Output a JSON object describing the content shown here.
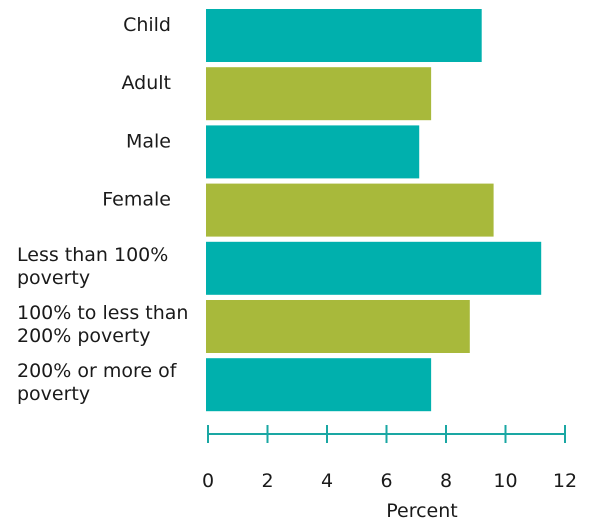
{
  "chart_data": {
    "type": "bar",
    "orientation": "horizontal",
    "categories": [
      "Child",
      "Adult",
      "Male",
      "Female",
      "Less than 100% poverty",
      "100% to less than 200% poverty",
      "200% or more of poverty"
    ],
    "category_lines": [
      [
        "Child"
      ],
      [
        "Adult"
      ],
      [
        "Male"
      ],
      [
        "Female"
      ],
      [
        "Less than 100%",
        "poverty"
      ],
      [
        "100% to less than",
        "200% poverty"
      ],
      [
        "200% or more of",
        "poverty"
      ]
    ],
    "values": [
      9.2,
      7.5,
      7.1,
      9.6,
      11.2,
      8.8,
      7.5
    ],
    "bar_colors": [
      "#00b0ad",
      "#a8b93b",
      "#00b0ad",
      "#a8b93b",
      "#00b0ad",
      "#a8b93b",
      "#00b0ad"
    ],
    "xlabel": "Percent",
    "xlim": [
      0,
      12
    ],
    "xticks": [
      0,
      2,
      4,
      6,
      8,
      10,
      12
    ],
    "grid": false,
    "legend": "none",
    "axis_color": "#1aa7a3"
  }
}
